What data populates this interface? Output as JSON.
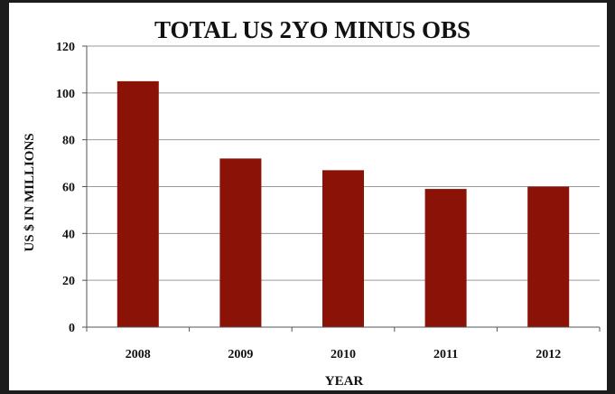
{
  "chart_data": {
    "type": "bar",
    "title": "TOTAL US 2YO MINUS OBS",
    "xlabel": "YEAR",
    "ylabel": "US $ IN MILLIONS",
    "categories": [
      "2008",
      "2009",
      "2010",
      "2011",
      "2012"
    ],
    "values": [
      105,
      72,
      67,
      59,
      60
    ],
    "ylim": [
      0,
      120
    ],
    "yticks": [
      "0",
      "20",
      "40",
      "60",
      "80",
      "100",
      "120"
    ],
    "grid": true,
    "legend": "none",
    "colors": {
      "bar": "#8b1206",
      "grid": "#9a9a9a",
      "axis": "#555555",
      "frame": "#1c1c1c"
    }
  }
}
